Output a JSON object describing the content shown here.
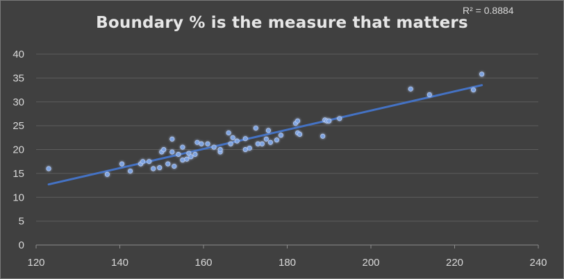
{
  "chart_data": {
    "type": "scatter",
    "title": "Boundary % is the measure that matters",
    "annotation": "R² = 0.8884",
    "xlim": [
      120,
      240
    ],
    "ylim": [
      0,
      40
    ],
    "xticks": [
      120,
      140,
      160,
      180,
      200,
      220,
      240
    ],
    "yticks": [
      0,
      5,
      10,
      15,
      20,
      25,
      30,
      35,
      40
    ],
    "grid": "horizontal",
    "legend": "none",
    "trendline": {
      "type": "linear",
      "from": [
        123,
        12.7
      ],
      "to": [
        226.5,
        33.5
      ]
    },
    "colors": {
      "point": "#7ea3e0",
      "trendline": "#4472c4",
      "grid": "#5d5d5d",
      "axis": "#8c8c8c"
    },
    "series": [
      {
        "points": [
          [
            123.0,
            16.0
          ],
          [
            137.0,
            14.8
          ],
          [
            140.5,
            17.0
          ],
          [
            142.5,
            15.5
          ],
          [
            145.0,
            17.0
          ],
          [
            145.5,
            17.5
          ],
          [
            147.0,
            17.5
          ],
          [
            148.0,
            16.0
          ],
          [
            149.5,
            16.2
          ],
          [
            150.0,
            19.5
          ],
          [
            150.5,
            20.0
          ],
          [
            151.5,
            17.0
          ],
          [
            152.5,
            22.2
          ],
          [
            152.5,
            19.5
          ],
          [
            153.0,
            16.5
          ],
          [
            154.0,
            19.0
          ],
          [
            155.0,
            20.5
          ],
          [
            155.0,
            17.8
          ],
          [
            156.0,
            18.0
          ],
          [
            156.5,
            19.2
          ],
          [
            157.0,
            18.5
          ],
          [
            158.0,
            19.0
          ],
          [
            158.5,
            21.5
          ],
          [
            159.5,
            21.2
          ],
          [
            161.0,
            21.2
          ],
          [
            162.5,
            20.5
          ],
          [
            164.0,
            19.5
          ],
          [
            164.0,
            20.0
          ],
          [
            166.0,
            23.5
          ],
          [
            166.5,
            21.2
          ],
          [
            167.0,
            22.5
          ],
          [
            168.0,
            21.8
          ],
          [
            170.0,
            22.3
          ],
          [
            170.0,
            20.0
          ],
          [
            171.0,
            20.3
          ],
          [
            172.5,
            24.5
          ],
          [
            173.0,
            21.2
          ],
          [
            174.0,
            21.2
          ],
          [
            175.0,
            22.2
          ],
          [
            175.5,
            24.0
          ],
          [
            176.0,
            21.5
          ],
          [
            177.5,
            22.0
          ],
          [
            178.5,
            23.0
          ],
          [
            182.0,
            25.5
          ],
          [
            182.5,
            23.5
          ],
          [
            182.5,
            26.0
          ],
          [
            183.0,
            23.2
          ],
          [
            188.5,
            22.8
          ],
          [
            189.0,
            26.2
          ],
          [
            189.5,
            26.0
          ],
          [
            190.0,
            26.0
          ],
          [
            192.5,
            26.5
          ],
          [
            209.5,
            32.7
          ],
          [
            214.0,
            31.5
          ],
          [
            224.5,
            32.5
          ],
          [
            226.5,
            35.8
          ]
        ]
      }
    ]
  }
}
